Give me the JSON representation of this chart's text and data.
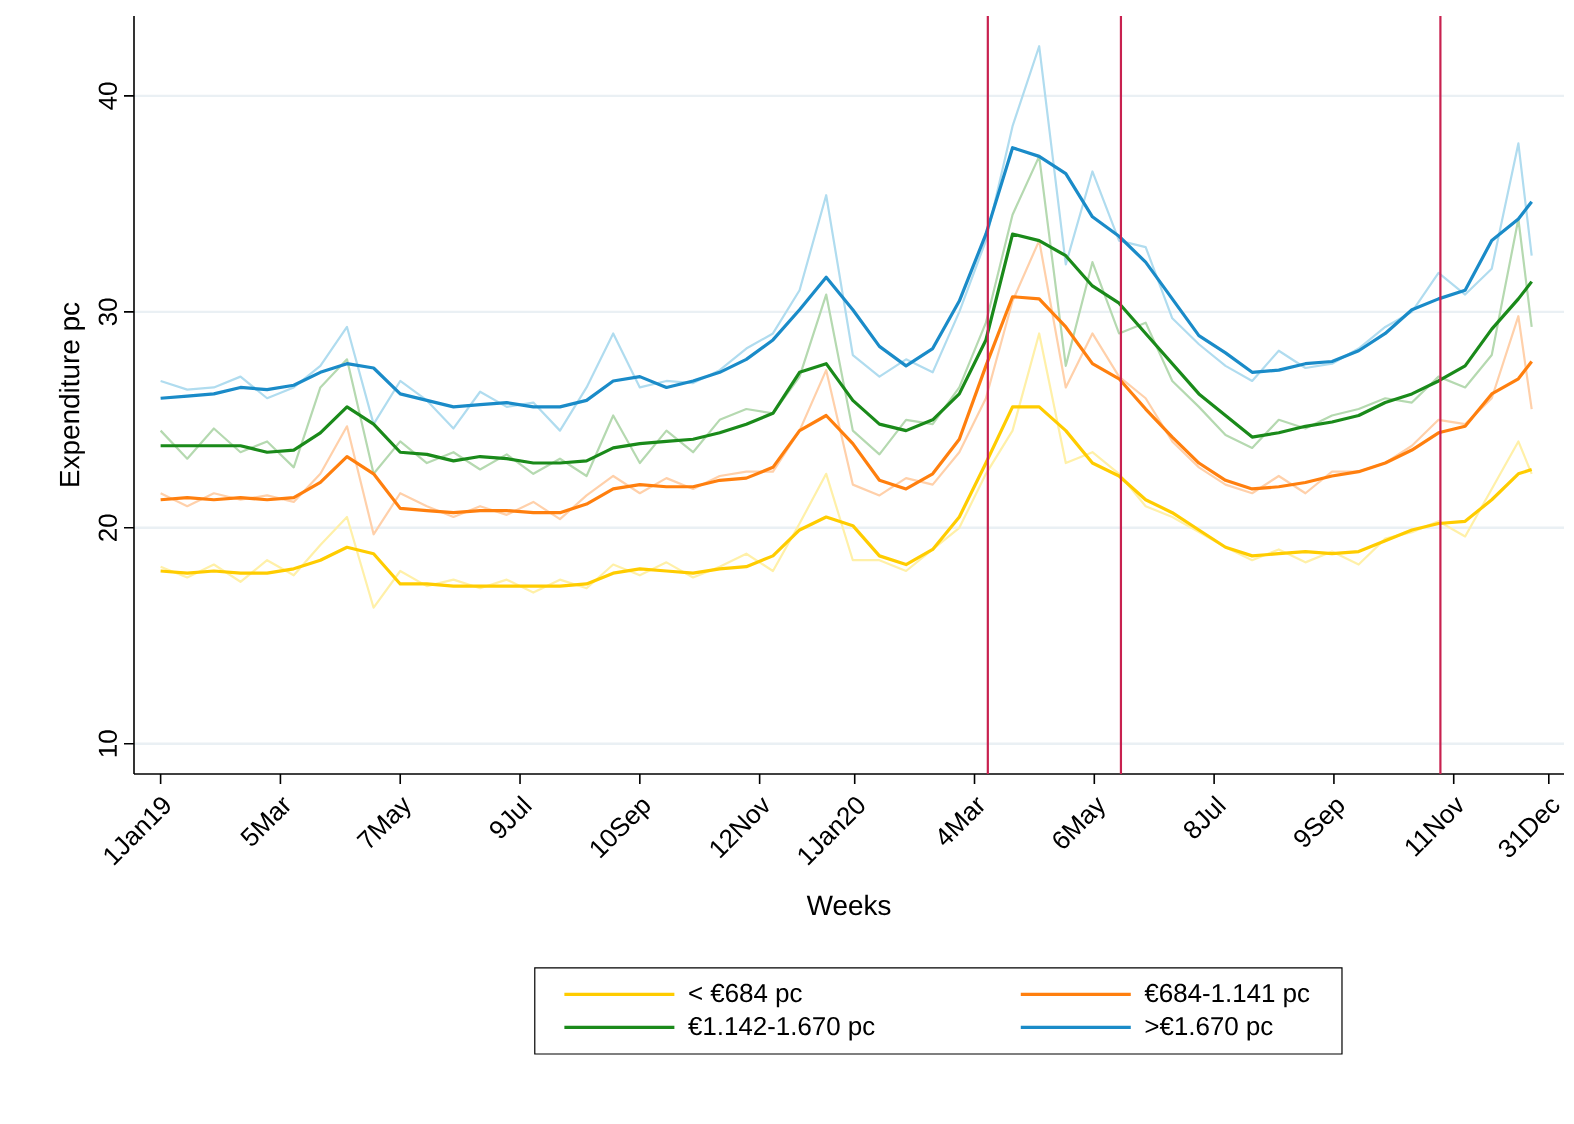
{
  "chart_data": {
    "type": "line",
    "xlabel": "Weeks",
    "ylabel": "Expenditure pc",
    "x": [
      "2019-01-01",
      "2019-01-15",
      "2019-01-29",
      "2019-02-12",
      "2019-02-26",
      "2019-03-12",
      "2019-03-26",
      "2019-04-09",
      "2019-04-23",
      "2019-05-07",
      "2019-05-21",
      "2019-06-04",
      "2019-06-18",
      "2019-07-02",
      "2019-07-16",
      "2019-07-30",
      "2019-08-13",
      "2019-08-27",
      "2019-09-10",
      "2019-09-24",
      "2019-10-08",
      "2019-10-22",
      "2019-11-05",
      "2019-11-19",
      "2019-12-03",
      "2019-12-17",
      "2019-12-31",
      "2020-01-14",
      "2020-01-28",
      "2020-02-11",
      "2020-02-25",
      "2020-03-10",
      "2020-03-24",
      "2020-04-07",
      "2020-04-21",
      "2020-05-05",
      "2020-05-19",
      "2020-06-02",
      "2020-06-16",
      "2020-06-30",
      "2020-07-14",
      "2020-07-28",
      "2020-08-11",
      "2020-08-25",
      "2020-09-08",
      "2020-09-22",
      "2020-10-06",
      "2020-10-20",
      "2020-11-03",
      "2020-11-17",
      "2020-12-01",
      "2020-12-15",
      "2020-12-22"
    ],
    "series": [
      {
        "color": "#fff0a8",
        "values": [
          18.2,
          17.7,
          18.3,
          17.5,
          18.5,
          17.8,
          19.2,
          20.5,
          16.3,
          18.0,
          17.3,
          17.6,
          17.2,
          17.6,
          17.0,
          17.6,
          17.2,
          18.3,
          17.8,
          18.4,
          17.7,
          18.2,
          18.8,
          18.0,
          20.2,
          22.5,
          18.5,
          18.5,
          18.0,
          19.0,
          20.0,
          22.5,
          24.5,
          29.0,
          23.0,
          23.5,
          22.5,
          21.0,
          20.5,
          19.8,
          19.1,
          18.5,
          19.0,
          18.4,
          18.9,
          18.3,
          19.5,
          19.8,
          20.3,
          19.6,
          21.8,
          24.0,
          22.5
        ]
      },
      {
        "color": "#ffd0aa",
        "values": [
          21.6,
          21.0,
          21.6,
          21.3,
          21.5,
          21.2,
          22.5,
          24.7,
          19.7,
          21.6,
          21.0,
          20.5,
          21.0,
          20.6,
          21.2,
          20.4,
          21.5,
          22.4,
          21.6,
          22.3,
          21.8,
          22.4,
          22.6,
          22.6,
          24.5,
          27.3,
          22.0,
          21.5,
          22.3,
          22.0,
          23.5,
          26.0,
          30.5,
          33.3,
          26.5,
          29.0,
          27.0,
          26.0,
          24.0,
          22.8,
          22.0,
          21.6,
          22.4,
          21.6,
          22.6,
          22.6,
          23.0,
          23.8,
          25.0,
          24.8,
          26.0,
          29.8,
          25.5
        ]
      },
      {
        "color": "#b5d9b0",
        "values": [
          24.5,
          23.2,
          24.6,
          23.5,
          24.0,
          22.8,
          26.5,
          27.8,
          22.5,
          24.0,
          23.0,
          23.5,
          22.7,
          23.4,
          22.5,
          23.2,
          22.4,
          25.2,
          23.0,
          24.5,
          23.5,
          25.0,
          25.5,
          25.3,
          27.0,
          30.8,
          24.5,
          23.4,
          25.0,
          24.8,
          26.5,
          29.5,
          34.5,
          37.2,
          27.5,
          32.3,
          29.0,
          29.5,
          26.8,
          25.6,
          24.3,
          23.7,
          25.0,
          24.6,
          25.2,
          25.5,
          26.0,
          25.8,
          27.0,
          26.5,
          28.0,
          34.3,
          29.3
        ]
      },
      {
        "color": "#b0dcef",
        "values": [
          26.8,
          26.4,
          26.5,
          27.0,
          26.0,
          26.5,
          27.5,
          29.3,
          24.8,
          26.8,
          25.9,
          24.6,
          26.3,
          25.6,
          25.8,
          24.5,
          26.5,
          29.0,
          26.5,
          26.8,
          26.7,
          27.3,
          28.3,
          29.0,
          31.0,
          35.4,
          28.0,
          27.0,
          27.8,
          27.2,
          30.0,
          33.3,
          38.6,
          42.3,
          32.2,
          36.5,
          33.3,
          33.0,
          29.7,
          28.5,
          27.5,
          26.8,
          28.2,
          27.4,
          27.6,
          28.3,
          29.3,
          30.0,
          31.8,
          30.8,
          32.0,
          37.8,
          32.6
        ]
      },
      {
        "name": "< €684 pc",
        "color": "#ffcc00",
        "values": [
          18.0,
          17.9,
          18.0,
          17.9,
          17.9,
          18.1,
          18.5,
          19.1,
          18.8,
          17.4,
          17.4,
          17.3,
          17.3,
          17.3,
          17.3,
          17.3,
          17.4,
          17.9,
          18.1,
          18.0,
          17.9,
          18.1,
          18.2,
          18.7,
          19.9,
          20.5,
          20.1,
          18.7,
          18.3,
          19.0,
          20.5,
          23.0,
          25.6,
          25.6,
          24.5,
          23.0,
          22.4,
          21.3,
          20.7,
          19.9,
          19.1,
          18.7,
          18.8,
          18.9,
          18.8,
          18.9,
          19.4,
          19.9,
          20.2,
          20.3,
          21.3,
          22.5,
          22.7
        ]
      },
      {
        "name": "€684-1.141 pc",
        "color": "#ff7f0e",
        "values": [
          21.3,
          21.4,
          21.3,
          21.4,
          21.3,
          21.4,
          22.1,
          23.3,
          22.5,
          20.9,
          20.8,
          20.7,
          20.8,
          20.8,
          20.7,
          20.7,
          21.1,
          21.8,
          22.0,
          21.9,
          21.9,
          22.2,
          22.3,
          22.8,
          24.5,
          25.2,
          23.9,
          22.2,
          21.8,
          22.5,
          24.1,
          27.5,
          30.7,
          30.6,
          29.3,
          27.6,
          26.9,
          25.5,
          24.2,
          23.0,
          22.2,
          21.8,
          21.9,
          22.1,
          22.4,
          22.6,
          23.0,
          23.6,
          24.4,
          24.7,
          26.2,
          26.9,
          27.7
        ]
      },
      {
        "name": "€1.142-1.670 pc",
        "color": "#1a8a1a",
        "values": [
          23.8,
          23.8,
          23.8,
          23.8,
          23.5,
          23.6,
          24.4,
          25.6,
          24.8,
          23.5,
          23.4,
          23.1,
          23.3,
          23.2,
          23.0,
          23.0,
          23.1,
          23.7,
          23.9,
          24.0,
          24.1,
          24.4,
          24.8,
          25.3,
          27.2,
          27.6,
          25.9,
          24.8,
          24.5,
          25.0,
          26.2,
          28.7,
          33.6,
          33.3,
          32.6,
          31.2,
          30.4,
          29.0,
          27.6,
          26.2,
          25.2,
          24.2,
          24.4,
          24.7,
          24.9,
          25.2,
          25.8,
          26.2,
          26.8,
          27.5,
          29.2,
          30.6,
          31.4
        ]
      },
      {
        "name": ">€1.670 pc",
        "color": "#1a8bc8",
        "values": [
          26.0,
          26.1,
          26.2,
          26.5,
          26.4,
          26.6,
          27.2,
          27.6,
          27.4,
          26.2,
          25.9,
          25.6,
          25.7,
          25.8,
          25.6,
          25.6,
          25.9,
          26.8,
          27.0,
          26.5,
          26.8,
          27.2,
          27.8,
          28.7,
          30.1,
          31.6,
          30.1,
          28.4,
          27.5,
          28.3,
          30.5,
          33.6,
          37.6,
          37.2,
          36.4,
          34.4,
          33.5,
          32.3,
          30.6,
          28.9,
          28.1,
          27.2,
          27.3,
          27.6,
          27.7,
          28.2,
          29.0,
          30.1,
          30.6,
          31.0,
          33.3,
          34.3,
          35.1
        ]
      }
    ],
    "xlim": [
      "2018-12-18",
      "2021-01-08"
    ],
    "xticks": [
      {
        "value": "2019-01-01",
        "label": "1Jan19"
      },
      {
        "value": "2019-03-05",
        "label": "5Mar"
      },
      {
        "value": "2019-05-07",
        "label": "7May"
      },
      {
        "value": "2019-07-09",
        "label": "9Jul"
      },
      {
        "value": "2019-09-10",
        "label": "10Sep"
      },
      {
        "value": "2019-11-12",
        "label": "12Nov"
      },
      {
        "value": "2020-01-01",
        "label": "1Jan20"
      },
      {
        "value": "2020-03-04",
        "label": "4Mar"
      },
      {
        "value": "2020-05-06",
        "label": "6May"
      },
      {
        "value": "2020-07-08",
        "label": "8Jul"
      },
      {
        "value": "2020-09-09",
        "label": "9Sep"
      },
      {
        "value": "2020-11-11",
        "label": "11Nov"
      },
      {
        "value": "2020-12-31",
        "label": "31Dec"
      }
    ],
    "ylim": [
      8.6,
      43.7
    ],
    "yticks": [
      10,
      20,
      30,
      40
    ],
    "ref_lines": [
      {
        "axis": "x",
        "value": "2020-03-11",
        "color": "#c8214f"
      },
      {
        "axis": "x",
        "value": "2020-05-20",
        "color": "#c8214f"
      },
      {
        "axis": "x",
        "value": "2020-11-04",
        "color": "#c8214f"
      }
    ],
    "grid": "y",
    "legend": "bottom",
    "marker": "none",
    "line_style": "solid"
  }
}
